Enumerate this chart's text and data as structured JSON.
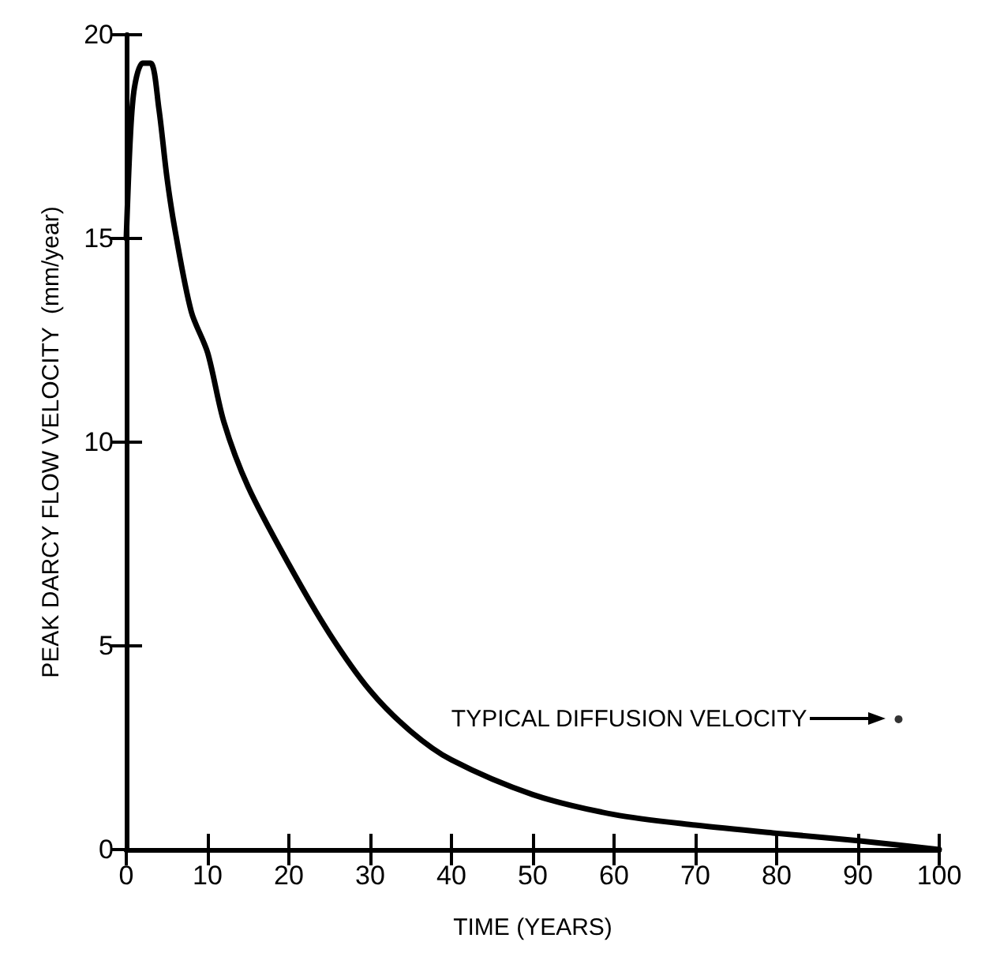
{
  "chart_data": {
    "type": "line",
    "xlabel": "TIME (YEARS)",
    "ylabel": "PEAK DARCY FLOW VELOCITY  (mm/year)",
    "x": [
      0,
      0.5,
      1,
      2,
      3,
      4,
      5,
      6,
      8,
      10,
      12,
      15,
      20,
      25,
      30,
      35,
      40,
      50,
      60,
      70,
      80,
      90,
      100
    ],
    "series": [
      {
        "color": "#000000",
        "marker": "none",
        "values": [
          15,
          17.5,
          18.7,
          19.3,
          19.3,
          18.2,
          16.5,
          15.2,
          13.2,
          12.2,
          10.5,
          8.9,
          7.0,
          5.3,
          3.9,
          2.9,
          2.2,
          1.35,
          0.86,
          0.6,
          0.4,
          0.22,
          0
        ]
      },
      {
        "type": "scatter",
        "marker": "circle",
        "color": "#000000",
        "x": [
          95
        ],
        "values": [
          3.2
        ]
      }
    ],
    "xlim": [
      0,
      100
    ],
    "xticks": [
      0,
      10,
      20,
      30,
      40,
      50,
      60,
      70,
      80,
      90,
      100
    ],
    "ylim": [
      0,
      20
    ],
    "yticks": [
      0,
      5,
      10,
      15,
      20
    ],
    "annotations": [
      "TYPICAL DIFFUSION VELOCITY"
    ],
    "line_style": "solid"
  }
}
